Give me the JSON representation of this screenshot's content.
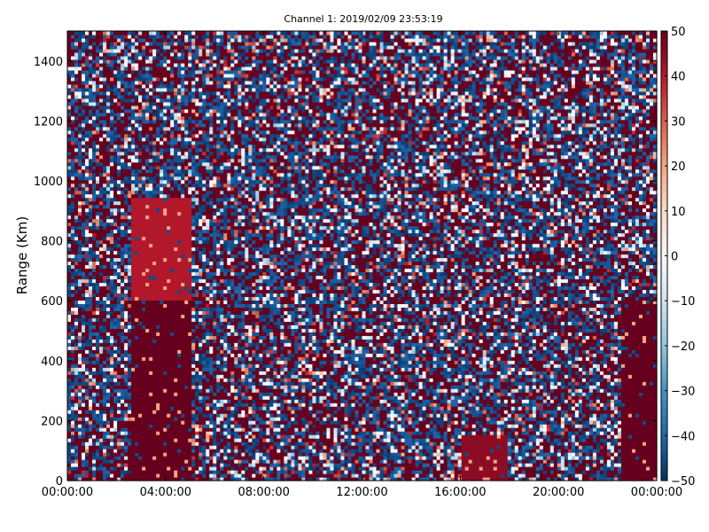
{
  "chart_data": {
    "type": "heatmap",
    "title": "Channel 1: 2019/02/09 23:53:19",
    "xlabel": "",
    "ylabel": "Range (Km)",
    "x_ticks": [
      "00:00:00",
      "04:00:00",
      "08:00:00",
      "12:00:00",
      "16:00:00",
      "20:00:00",
      "00:00:00"
    ],
    "x_range_hours": [
      0,
      24
    ],
    "y_ticks": [
      0,
      200,
      400,
      600,
      800,
      1000,
      1200,
      1400
    ],
    "y_range_km": [
      0,
      1500
    ],
    "colorbar": {
      "ticks": [
        50,
        40,
        30,
        20,
        10,
        0,
        -10,
        -20,
        -30,
        -40,
        -50
      ],
      "range": [
        -50,
        50
      ],
      "colormap": "RdBu_r",
      "colors": [
        "#053061",
        "#2166ac",
        "#4393c3",
        "#92c5de",
        "#d1e5f0",
        "#f7f7f7",
        "#fddbc7",
        "#f4a582",
        "#d6604d",
        "#b2182b",
        "#67001f"
      ]
    },
    "dominant_regions": [
      {
        "x_hours": [
          2.6,
          5.0
        ],
        "y_km": [
          0,
          600
        ],
        "value": 50
      },
      {
        "x_hours": [
          2.6,
          5.0
        ],
        "y_km": [
          600,
          950
        ],
        "value": 40
      },
      {
        "x_hours": [
          22.6,
          24.0
        ],
        "y_km": [
          0,
          600
        ],
        "value": 50
      },
      {
        "x_hours": [
          16.0,
          18.0
        ],
        "y_km": [
          0,
          150
        ],
        "value": 45
      }
    ],
    "background_pattern": "noisy mix of high (+50) and low (-50) values",
    "grid": false
  }
}
